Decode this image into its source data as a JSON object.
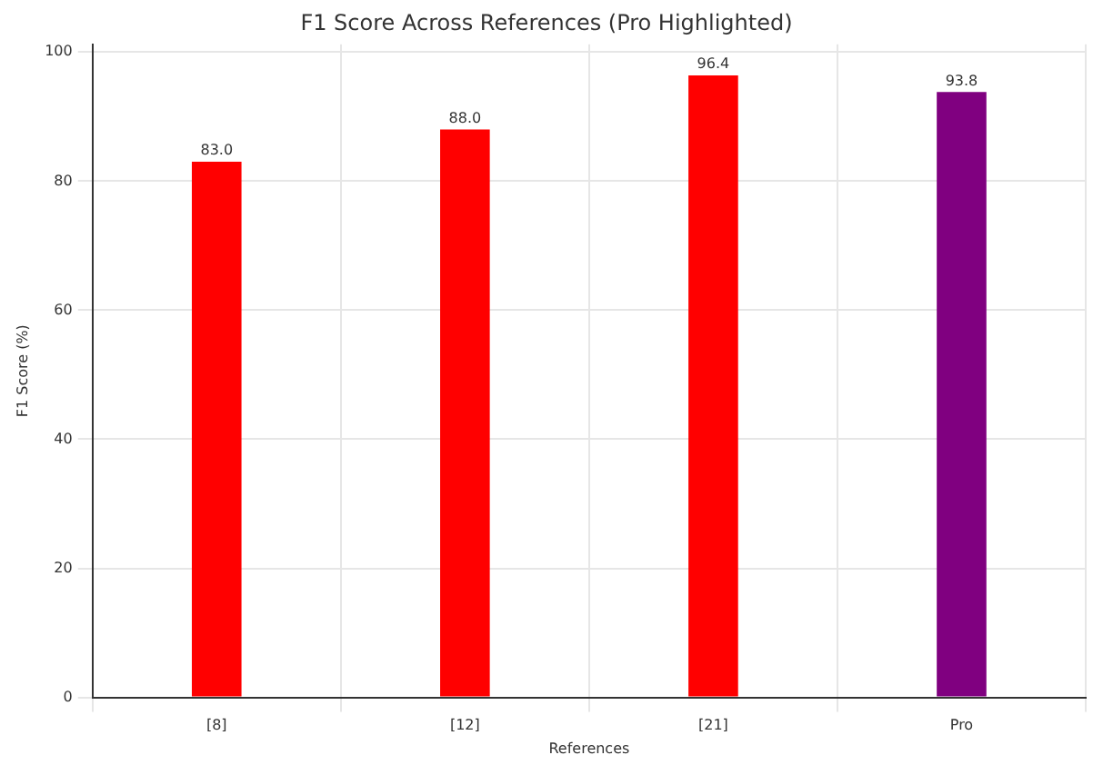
{
  "chart_data": {
    "type": "bar",
    "title": "F1 Score Across References (Pro Highlighted)",
    "xlabel": "References",
    "ylabel": "F1 Score (%)",
    "categories": [
      "[8]",
      "[12]",
      "[21]",
      "Pro"
    ],
    "values": [
      83.0,
      88.0,
      96.4,
      93.8
    ],
    "colors": [
      "#ff0000",
      "#ff0000",
      "#ff0000",
      "#800080"
    ],
    "value_labels": [
      "83.0",
      "88.0",
      "96.4",
      "93.8"
    ],
    "ylim": [
      0,
      101.2
    ],
    "yticks": [
      0,
      20,
      40,
      60,
      80,
      100
    ],
    "grid": true,
    "legend": false
  }
}
